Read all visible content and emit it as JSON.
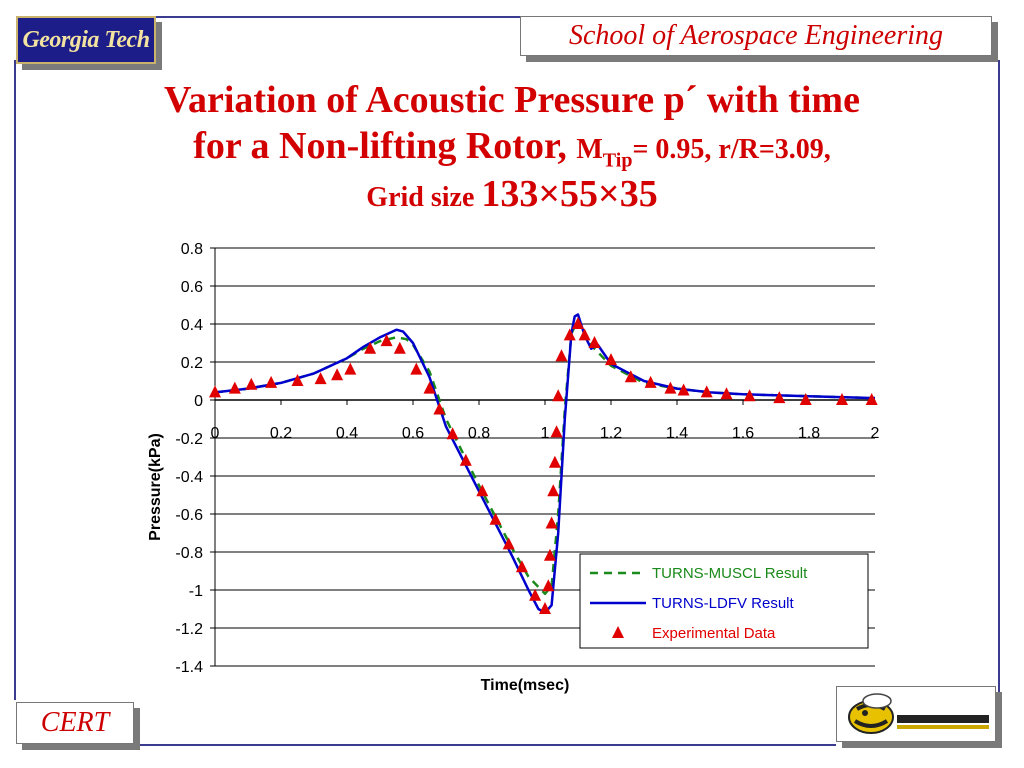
{
  "header": {
    "logo_text": "Georgia Tech",
    "school": "School of Aerospace Engineering"
  },
  "title": {
    "line1": "Variation of Acoustic Pressure p´ with time",
    "line2_main": "for a Non-lifting Rotor, ",
    "line2_m": "M",
    "line2_sub": "Tip",
    "line2_rest": "= 0.95, r/R=3.09,",
    "line3_a": "Grid size ",
    "line3_b": "133×55×35"
  },
  "footer": {
    "cert": "CERT",
    "mascot": "yellow-jacket-mascot"
  },
  "colors": {
    "title": "#d20000",
    "muscl": "#1a8a1a",
    "ldfv": "#0000cc",
    "experimental": "#e00000"
  },
  "chart_data": {
    "type": "line",
    "xlabel": "Time(msec)",
    "ylabel": "Pressure(kPa)",
    "xlim": [
      0,
      2
    ],
    "ylim": [
      -1.4,
      0.8
    ],
    "xticks": [
      "0",
      "0.2",
      "0.4",
      "0.6",
      "0.8",
      "1",
      "1.2",
      "1.4",
      "1.6",
      "1.8",
      "2"
    ],
    "yticks": [
      "0.8",
      "0.6",
      "0.4",
      "0.2",
      "0",
      "-0.2",
      "-0.4",
      "-0.6",
      "-0.8",
      "-1",
      "-1.2",
      "-1.4"
    ],
    "grid": "horizontal",
    "legend_position": "bottom-right",
    "series": [
      {
        "name": "TURNS-MUSCL Result",
        "style": "dashed",
        "x": [
          0,
          0.1,
          0.2,
          0.3,
          0.4,
          0.45,
          0.5,
          0.55,
          0.58,
          0.6,
          0.65,
          0.7,
          0.8,
          0.9,
          0.95,
          1.0,
          1.02,
          1.04,
          1.06,
          1.08,
          1.1,
          1.12,
          1.15,
          1.2,
          1.3,
          1.4,
          1.5,
          1.6,
          1.8,
          2.0
        ],
        "y": [
          0.04,
          0.06,
          0.09,
          0.14,
          0.22,
          0.27,
          0.31,
          0.33,
          0.32,
          0.29,
          0.15,
          -0.1,
          -0.45,
          -0.78,
          -0.93,
          -1.02,
          -0.98,
          -0.6,
          -0.05,
          0.35,
          0.42,
          0.35,
          0.27,
          0.18,
          0.09,
          0.06,
          0.04,
          0.03,
          0.02,
          0.01
        ]
      },
      {
        "name": "TURNS-LDFV Result",
        "style": "solid",
        "x": [
          0,
          0.1,
          0.2,
          0.3,
          0.4,
          0.45,
          0.5,
          0.55,
          0.57,
          0.6,
          0.65,
          0.7,
          0.8,
          0.9,
          0.95,
          0.98,
          1.0,
          1.02,
          1.04,
          1.06,
          1.08,
          1.09,
          1.1,
          1.12,
          1.14,
          1.16,
          1.2,
          1.3,
          1.4,
          1.5,
          1.6,
          1.8,
          2.0
        ],
        "y": [
          0.04,
          0.06,
          0.09,
          0.14,
          0.22,
          0.28,
          0.33,
          0.37,
          0.36,
          0.3,
          0.12,
          -0.14,
          -0.48,
          -0.82,
          -1.0,
          -1.1,
          -1.12,
          -1.08,
          -0.7,
          -0.1,
          0.35,
          0.44,
          0.45,
          0.34,
          0.27,
          0.29,
          0.19,
          0.1,
          0.06,
          0.04,
          0.03,
          0.02,
          0.01
        ]
      },
      {
        "name": "Experimental Data",
        "style": "markers",
        "x": [
          0.0,
          0.06,
          0.11,
          0.17,
          0.25,
          0.32,
          0.37,
          0.41,
          0.47,
          0.52,
          0.56,
          0.61,
          0.65,
          0.68,
          0.72,
          0.76,
          0.81,
          0.85,
          0.89,
          0.93,
          0.97,
          1.0,
          1.01,
          1.015,
          1.02,
          1.025,
          1.03,
          1.035,
          1.04,
          1.05,
          1.075,
          1.1,
          1.12,
          1.15,
          1.2,
          1.26,
          1.32,
          1.38,
          1.42,
          1.49,
          1.55,
          1.62,
          1.71,
          1.79,
          1.9,
          1.99
        ],
        "y": [
          0.04,
          0.06,
          0.08,
          0.09,
          0.1,
          0.11,
          0.13,
          0.16,
          0.27,
          0.31,
          0.27,
          0.16,
          0.06,
          -0.05,
          -0.18,
          -0.32,
          -0.48,
          -0.63,
          -0.76,
          -0.88,
          -1.03,
          -1.1,
          -0.98,
          -0.82,
          -0.65,
          -0.48,
          -0.33,
          -0.17,
          0.02,
          0.23,
          0.34,
          0.4,
          0.34,
          0.3,
          0.21,
          0.12,
          0.09,
          0.06,
          0.05,
          0.04,
          0.03,
          0.02,
          0.01,
          0.0,
          0.0,
          0.0
        ]
      }
    ]
  }
}
